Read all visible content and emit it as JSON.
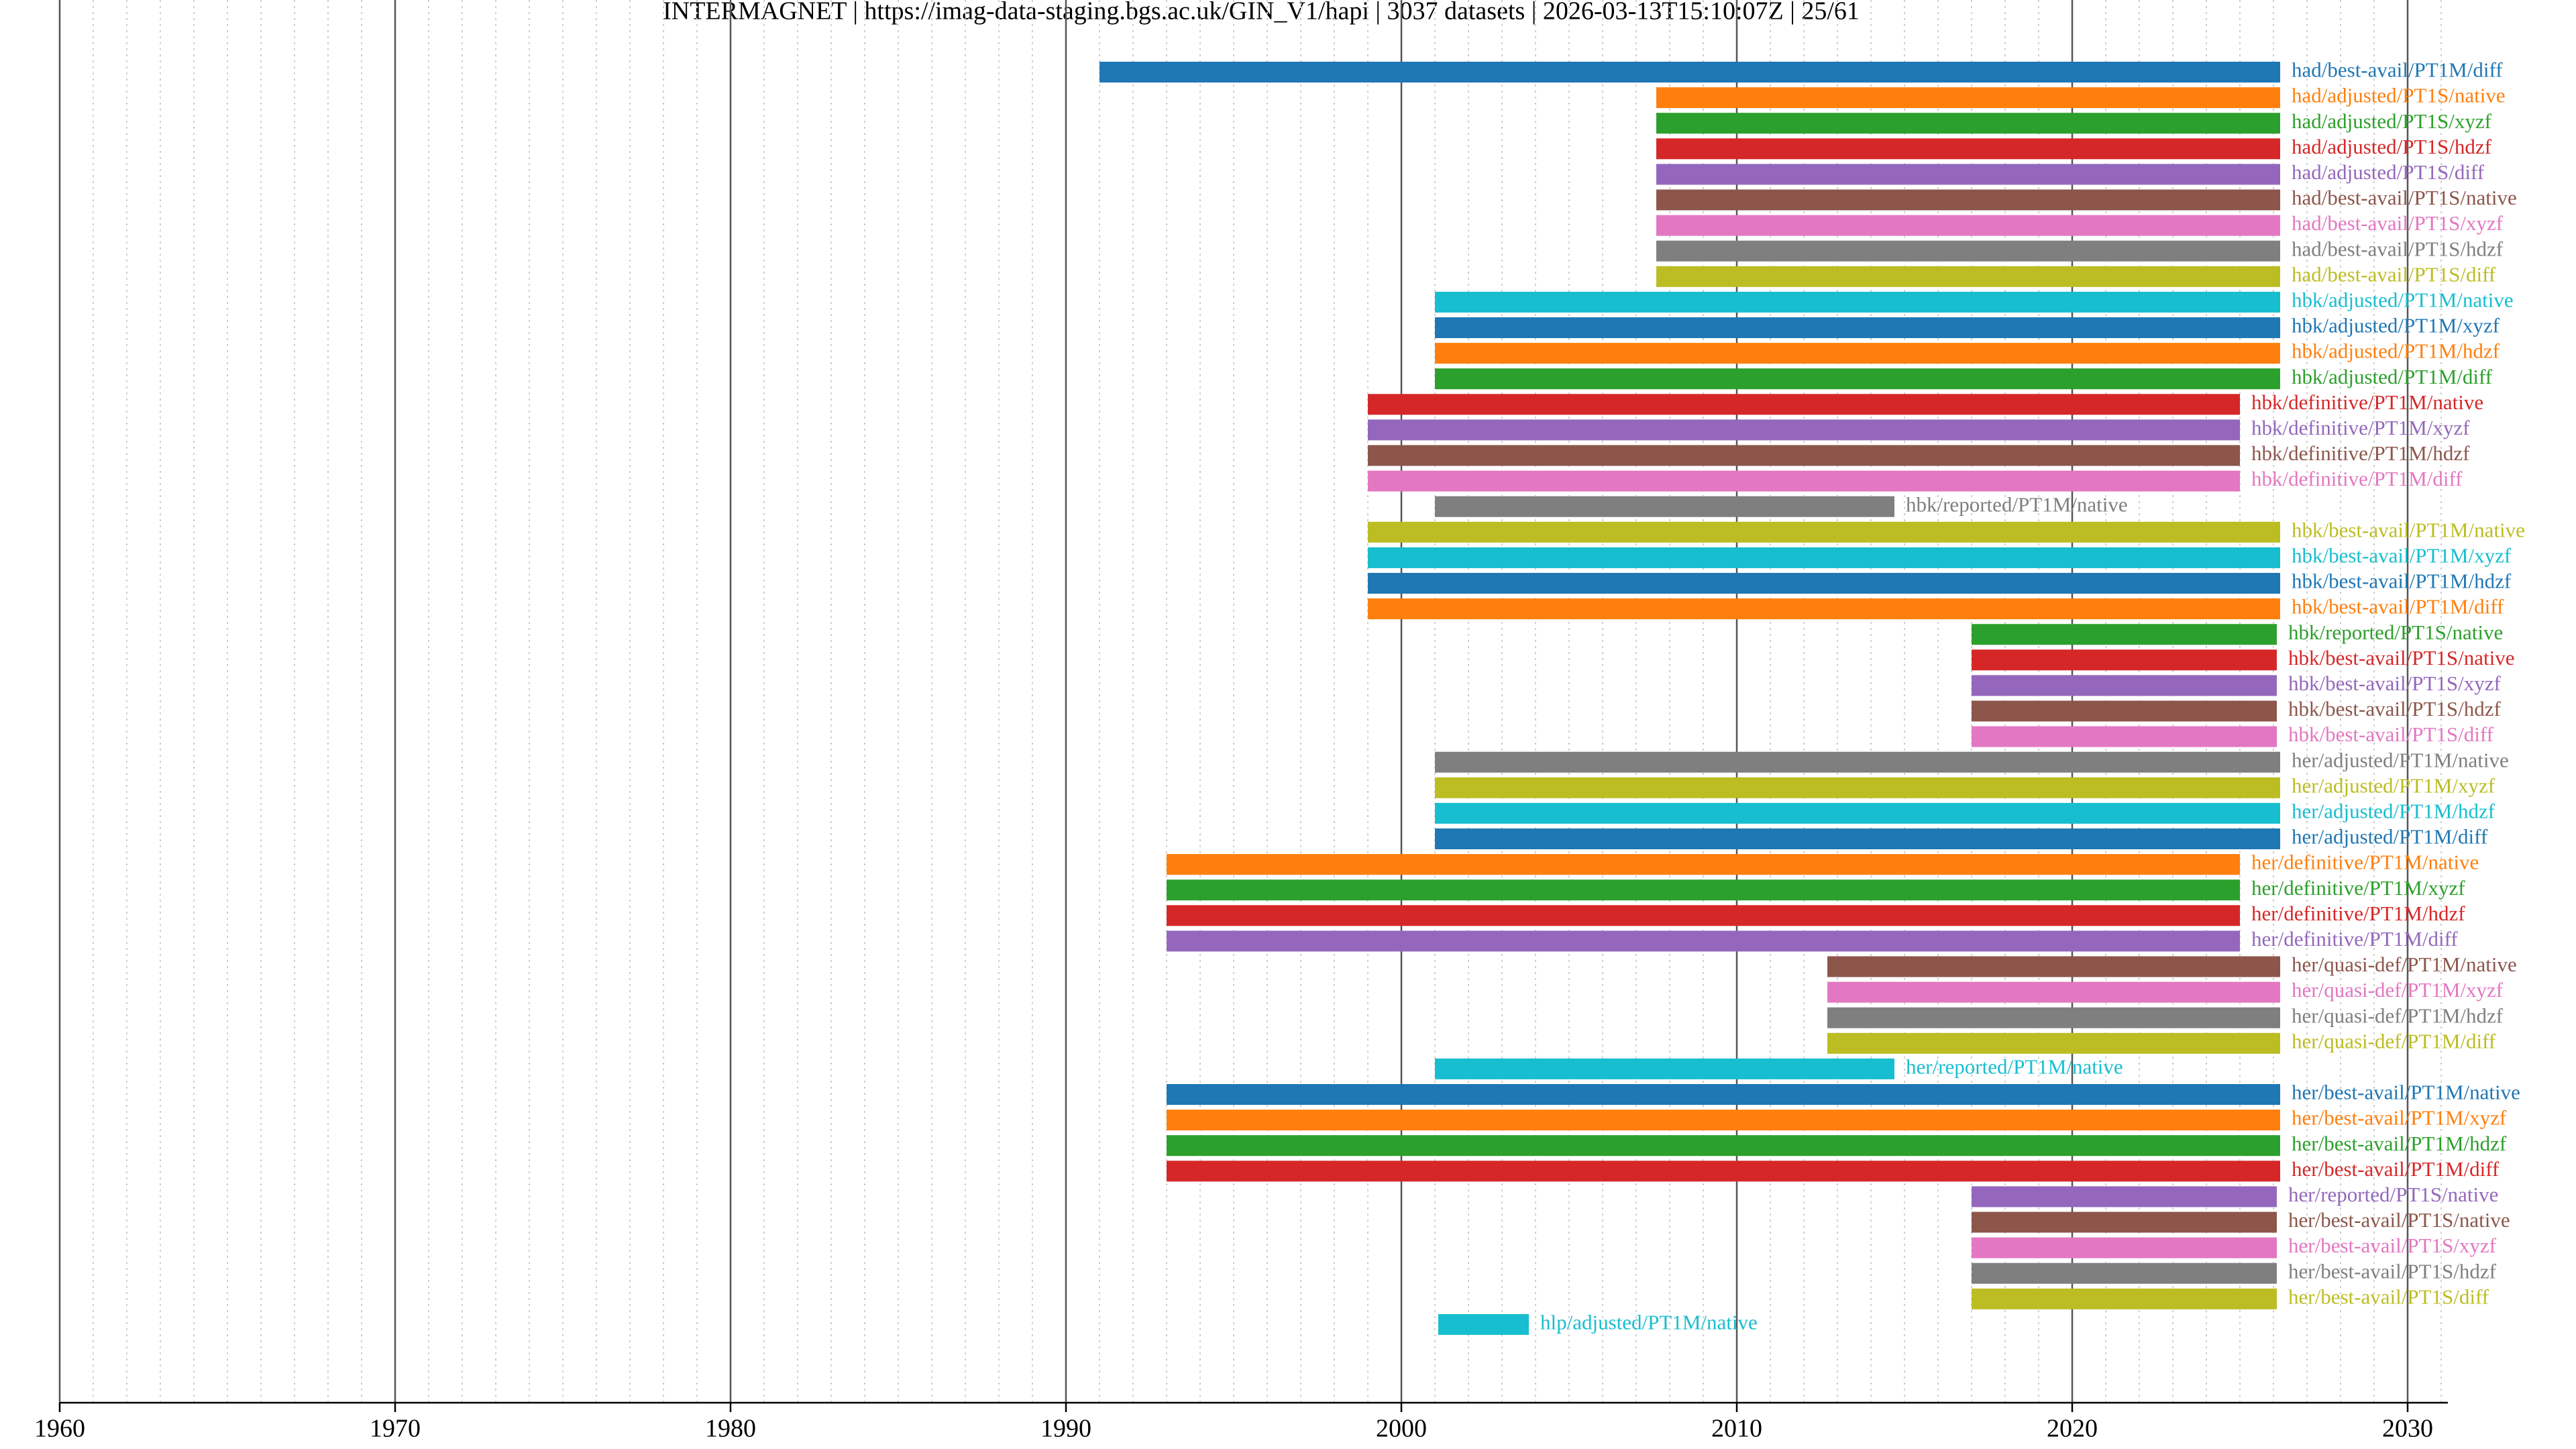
{
  "chart_data": {
    "type": "timeline",
    "title": "INTERMAGNET | https://imag-data-staging.bgs.ac.uk/GIN_V1/hapi | 3037 datasets | 2026-03-13T15:10:07Z | 25/61",
    "xlim": [
      1960,
      2031.2
    ],
    "xticks": [
      1960,
      1970,
      1980,
      1990,
      2000,
      2010,
      2020,
      2030
    ],
    "xminorticks": [
      1961,
      1962,
      1963,
      1964,
      1965,
      1966,
      1967,
      1968,
      1969,
      1971,
      1972,
      1973,
      1974,
      1975,
      1976,
      1977,
      1978,
      1979,
      1981,
      1982,
      1983,
      1984,
      1985,
      1986,
      1987,
      1988,
      1989,
      1991,
      1992,
      1993,
      1994,
      1995,
      1996,
      1997,
      1998,
      1999,
      2001,
      2002,
      2003,
      2004,
      2005,
      2006,
      2007,
      2008,
      2009,
      2011,
      2012,
      2013,
      2014,
      2015,
      2016,
      2017,
      2018,
      2019,
      2021,
      2022,
      2023,
      2024,
      2025,
      2026,
      2027,
      2028,
      2029,
      2031
    ],
    "grid": true,
    "series": [
      {
        "name": "had/best-avail/PT1M/diff",
        "color": "#1f77b4",
        "start": 1991.0,
        "end": 2026.2
      },
      {
        "name": "had/adjusted/PT1S/native",
        "color": "#ff7f0e",
        "start": 2007.6,
        "end": 2026.2
      },
      {
        "name": "had/adjusted/PT1S/xyzf",
        "color": "#2ca02c",
        "start": 2007.6,
        "end": 2026.2
      },
      {
        "name": "had/adjusted/PT1S/hdzf",
        "color": "#d62728",
        "start": 2007.6,
        "end": 2026.2
      },
      {
        "name": "had/adjusted/PT1S/diff",
        "color": "#9467bd",
        "start": 2007.6,
        "end": 2026.2
      },
      {
        "name": "had/best-avail/PT1S/native",
        "color": "#8c564b",
        "start": 2007.6,
        "end": 2026.2
      },
      {
        "name": "had/best-avail/PT1S/xyzf",
        "color": "#e377c2",
        "start": 2007.6,
        "end": 2026.2
      },
      {
        "name": "had/best-avail/PT1S/hdzf",
        "color": "#7f7f7f",
        "start": 2007.6,
        "end": 2026.2
      },
      {
        "name": "had/best-avail/PT1S/diff",
        "color": "#bcbd22",
        "start": 2007.6,
        "end": 2026.2
      },
      {
        "name": "hbk/adjusted/PT1M/native",
        "color": "#17becf",
        "start": 2001.0,
        "end": 2026.2
      },
      {
        "name": "hbk/adjusted/PT1M/xyzf",
        "color": "#1f77b4",
        "start": 2001.0,
        "end": 2026.2
      },
      {
        "name": "hbk/adjusted/PT1M/hdzf",
        "color": "#ff7f0e",
        "start": 2001.0,
        "end": 2026.2
      },
      {
        "name": "hbk/adjusted/PT1M/diff",
        "color": "#2ca02c",
        "start": 2001.0,
        "end": 2026.2
      },
      {
        "name": "hbk/definitive/PT1M/native",
        "color": "#d62728",
        "start": 1999.0,
        "end": 2025.0
      },
      {
        "name": "hbk/definitive/PT1M/xyzf",
        "color": "#9467bd",
        "start": 1999.0,
        "end": 2025.0
      },
      {
        "name": "hbk/definitive/PT1M/hdzf",
        "color": "#8c564b",
        "start": 1999.0,
        "end": 2025.0
      },
      {
        "name": "hbk/definitive/PT1M/diff",
        "color": "#e377c2",
        "start": 1999.0,
        "end": 2025.0
      },
      {
        "name": "hbk/reported/PT1M/native",
        "color": "#7f7f7f",
        "start": 2001.0,
        "end": 2014.7
      },
      {
        "name": "hbk/best-avail/PT1M/native",
        "color": "#bcbd22",
        "start": 1999.0,
        "end": 2026.2
      },
      {
        "name": "hbk/best-avail/PT1M/xyzf",
        "color": "#17becf",
        "start": 1999.0,
        "end": 2026.2
      },
      {
        "name": "hbk/best-avail/PT1M/hdzf",
        "color": "#1f77b4",
        "start": 1999.0,
        "end": 2026.2
      },
      {
        "name": "hbk/best-avail/PT1M/diff",
        "color": "#ff7f0e",
        "start": 1999.0,
        "end": 2026.2
      },
      {
        "name": "hbk/reported/PT1S/native",
        "color": "#2ca02c",
        "start": 2017.0,
        "end": 2026.1
      },
      {
        "name": "hbk/best-avail/PT1S/native",
        "color": "#d62728",
        "start": 2017.0,
        "end": 2026.1
      },
      {
        "name": "hbk/best-avail/PT1S/xyzf",
        "color": "#9467bd",
        "start": 2017.0,
        "end": 2026.1
      },
      {
        "name": "hbk/best-avail/PT1S/hdzf",
        "color": "#8c564b",
        "start": 2017.0,
        "end": 2026.1
      },
      {
        "name": "hbk/best-avail/PT1S/diff",
        "color": "#e377c2",
        "start": 2017.0,
        "end": 2026.1
      },
      {
        "name": "her/adjusted/PT1M/native",
        "color": "#7f7f7f",
        "start": 2001.0,
        "end": 2026.2
      },
      {
        "name": "her/adjusted/PT1M/xyzf",
        "color": "#bcbd22",
        "start": 2001.0,
        "end": 2026.2
      },
      {
        "name": "her/adjusted/PT1M/hdzf",
        "color": "#17becf",
        "start": 2001.0,
        "end": 2026.2
      },
      {
        "name": "her/adjusted/PT1M/diff",
        "color": "#1f77b4",
        "start": 2001.0,
        "end": 2026.2
      },
      {
        "name": "her/definitive/PT1M/native",
        "color": "#ff7f0e",
        "start": 1993.0,
        "end": 2025.0
      },
      {
        "name": "her/definitive/PT1M/xyzf",
        "color": "#2ca02c",
        "start": 1993.0,
        "end": 2025.0
      },
      {
        "name": "her/definitive/PT1M/hdzf",
        "color": "#d62728",
        "start": 1993.0,
        "end": 2025.0
      },
      {
        "name": "her/definitive/PT1M/diff",
        "color": "#9467bd",
        "start": 1993.0,
        "end": 2025.0
      },
      {
        "name": "her/quasi-def/PT1M/native",
        "color": "#8c564b",
        "start": 2012.7,
        "end": 2026.2
      },
      {
        "name": "her/quasi-def/PT1M/xyzf",
        "color": "#e377c2",
        "start": 2012.7,
        "end": 2026.2
      },
      {
        "name": "her/quasi-def/PT1M/hdzf",
        "color": "#7f7f7f",
        "start": 2012.7,
        "end": 2026.2
      },
      {
        "name": "her/quasi-def/PT1M/diff",
        "color": "#bcbd22",
        "start": 2012.7,
        "end": 2026.2
      },
      {
        "name": "her/reported/PT1M/native",
        "color": "#17becf",
        "start": 2001.0,
        "end": 2014.7
      },
      {
        "name": "her/best-avail/PT1M/native",
        "color": "#1f77b4",
        "start": 1993.0,
        "end": 2026.2
      },
      {
        "name": "her/best-avail/PT1M/xyzf",
        "color": "#ff7f0e",
        "start": 1993.0,
        "end": 2026.2
      },
      {
        "name": "her/best-avail/PT1M/hdzf",
        "color": "#2ca02c",
        "start": 1993.0,
        "end": 2026.2
      },
      {
        "name": "her/best-avail/PT1M/diff",
        "color": "#d62728",
        "start": 1993.0,
        "end": 2026.2
      },
      {
        "name": "her/reported/PT1S/native",
        "color": "#9467bd",
        "start": 2017.0,
        "end": 2026.1
      },
      {
        "name": "her/best-avail/PT1S/native",
        "color": "#8c564b",
        "start": 2017.0,
        "end": 2026.1
      },
      {
        "name": "her/best-avail/PT1S/xyzf",
        "color": "#e377c2",
        "start": 2017.0,
        "end": 2026.1
      },
      {
        "name": "her/best-avail/PT1S/hdzf",
        "color": "#7f7f7f",
        "start": 2017.0,
        "end": 2026.1
      },
      {
        "name": "her/best-avail/PT1S/diff",
        "color": "#bcbd22",
        "start": 2017.0,
        "end": 2026.1
      },
      {
        "name": "hlp/adjusted/PT1M/native",
        "color": "#17becf",
        "start": 2001.1,
        "end": 2003.8
      }
    ]
  }
}
